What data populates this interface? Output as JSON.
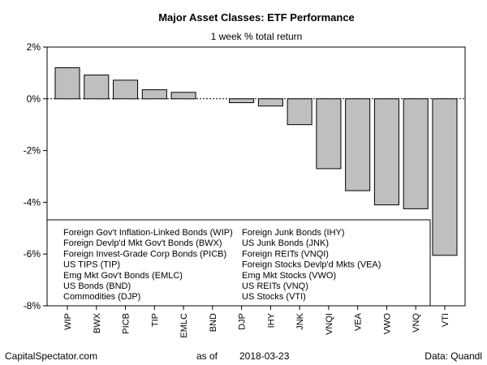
{
  "chart_data": {
    "type": "bar",
    "title": "Major Asset Classes: ETF Performance",
    "subtitle": "1 week % total return",
    "xlabel": "",
    "ylabel": "",
    "ylim": [
      -8,
      2
    ],
    "yticks": [
      2,
      0,
      -2,
      -4,
      -6,
      -8
    ],
    "ytick_labels": [
      "2%",
      "0%",
      "-2%",
      "-4%",
      "-6%",
      "-8%"
    ],
    "grid": false,
    "legend_placement": "bottom-left",
    "categories": [
      "WIP",
      "BWX",
      "PICB",
      "TIP",
      "EMLC",
      "BND",
      "DJP",
      "IHY",
      "JNK",
      "VNQI",
      "VEA",
      "VWO",
      "VNQ",
      "VTI"
    ],
    "values": [
      1.2,
      0.92,
      0.72,
      0.35,
      0.25,
      0.0,
      -0.15,
      -0.28,
      -1.0,
      -2.7,
      -3.55,
      -4.1,
      -4.25,
      -6.05
    ],
    "bar_color": "#bfbfbf",
    "legend_left": [
      "Foreign Gov't Inflation-Linked Bonds (WIP)",
      "Foreign Devlp'd Mkt Gov't Bonds (BWX)",
      "Foreign Invest-Grade Corp Bonds (PICB)",
      "US TIPS (TIP)",
      "Emg Mkt Gov't Bonds (EMLC)",
      "US Bonds (BND)",
      "Commodities (DJP)"
    ],
    "legend_right": [
      "Foreign Junk Bonds (IHY)",
      "US Junk Bonds (JNK)",
      "Foreign REITs (VNQI)",
      "Foreign Stocks Devlp'd Mkts (VEA)",
      "Emg Mkt Stocks (VWO)",
      "US REITs (VNQ)",
      "US Stocks (VTI)"
    ]
  },
  "footer": {
    "source_site": "CapitalSpectator.com",
    "as_of_label": "as of",
    "as_of_date": "2018-03-23",
    "data_credit": "Data: Quandl"
  }
}
